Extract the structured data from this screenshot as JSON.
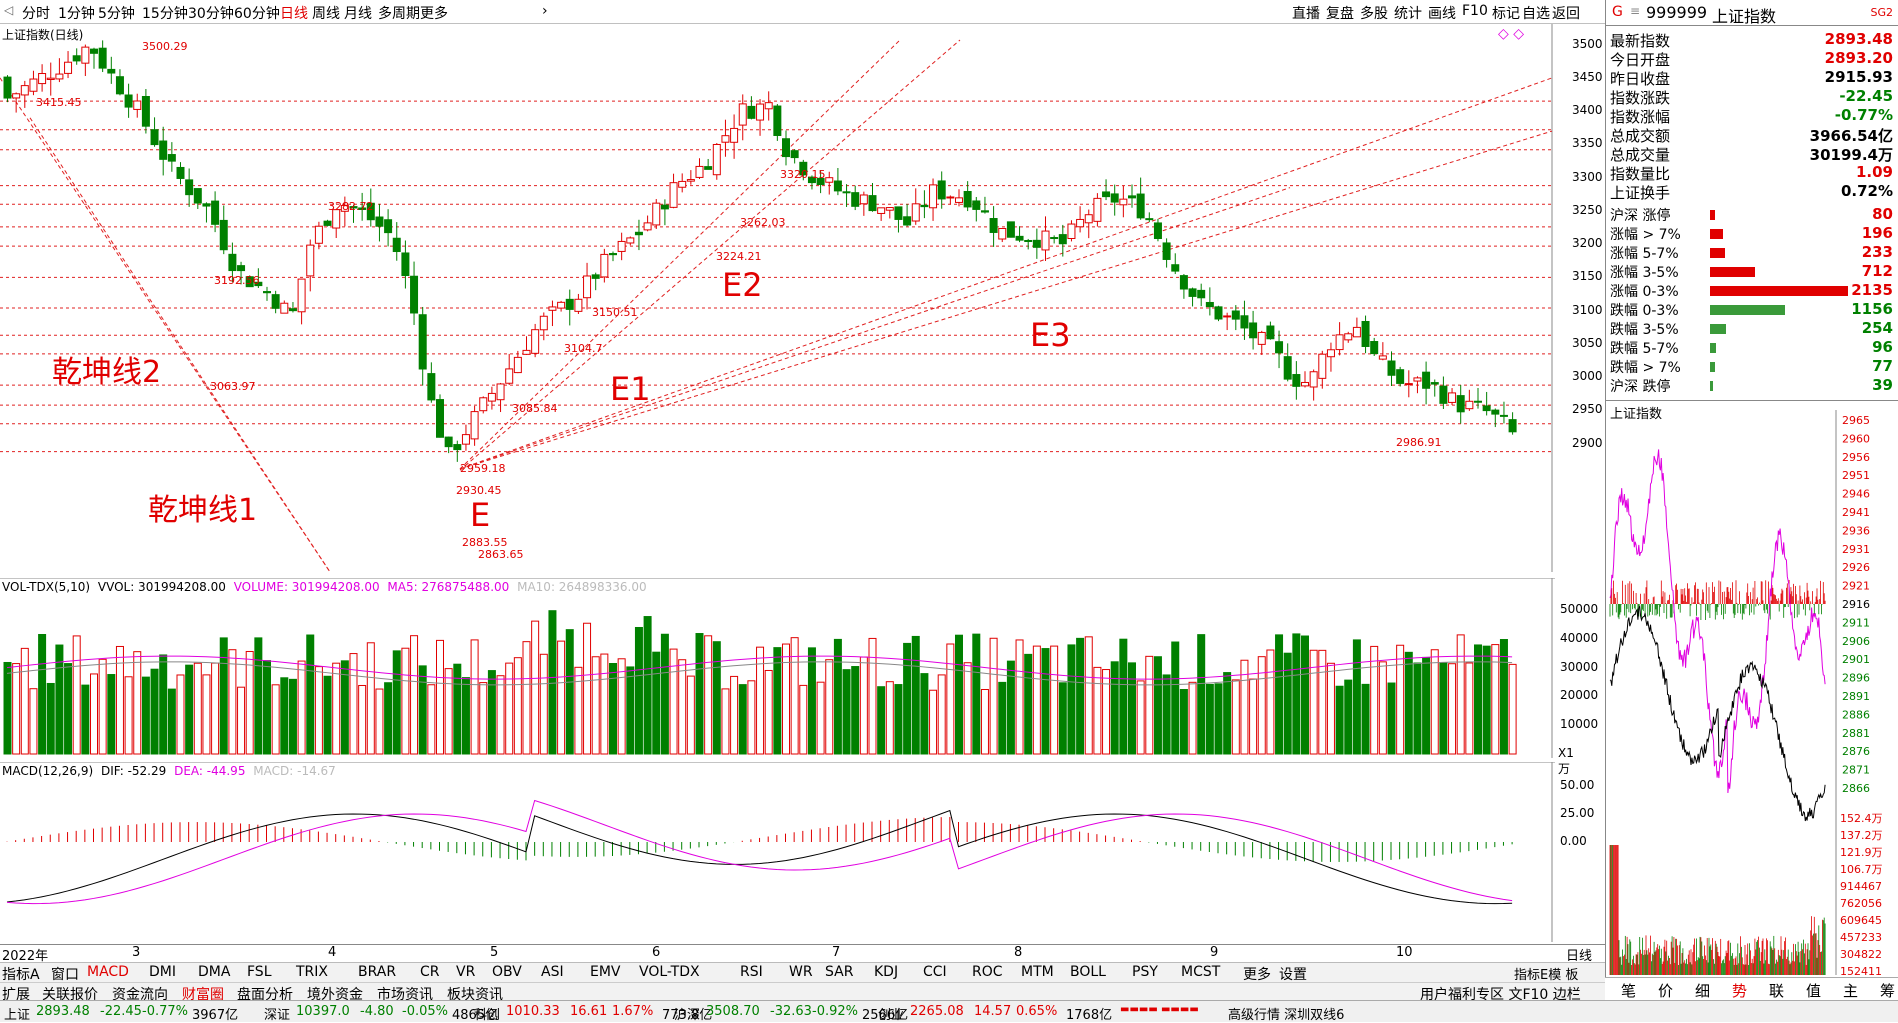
{
  "toolbar": {
    "items": [
      "分时",
      "1分钟",
      "5分钟",
      "15分钟",
      "30分钟",
      "60分钟",
      "日线",
      "周线",
      "月线",
      "多周期",
      "更多"
    ],
    "active": "日线",
    "right_items": [
      "直播",
      "复盘",
      "多股",
      "统计",
      "画线",
      "F10",
      "标记",
      "自选",
      "返回"
    ]
  },
  "main": {
    "title": "上证指数(日线)",
    "y_ticks": [
      "3500",
      "3450",
      "3400",
      "3350",
      "3300",
      "3250",
      "3200",
      "3150",
      "3100",
      "3050",
      "3000",
      "2950",
      "2900"
    ],
    "price_labels": [
      "3500.29",
      "3415.45",
      "3282.72",
      "3192.56",
      "3063.97",
      "3150.51",
      "3104.7",
      "3085.84",
      "3224.21",
      "3262.03",
      "3320.15",
      "2959.18",
      "2930.45",
      "2883.55",
      "2863.65",
      "2986.91"
    ],
    "annotations": [
      "乾坤线2",
      "乾坤线1",
      "E",
      "E1",
      "E2",
      "E3"
    ]
  },
  "volume": {
    "title": "VOL-TDX(5,10)",
    "vvol": "VVOL: 301994208.00",
    "volume": "VOLUME: 301994208.00",
    "ma5": "MA5: 276875488.00",
    "ma10": "MA10: 264898336.00",
    "y_ticks": [
      "50000",
      "40000",
      "30000",
      "20000",
      "10000"
    ],
    "unit": "X1万"
  },
  "macd": {
    "title": "MACD(12,26,9)",
    "dif": "DIF: -52.29",
    "dea": "DEA: -44.95",
    "macd": "MACD: -14.67",
    "y_ticks": [
      "50.00",
      "25.00",
      "0.00"
    ]
  },
  "xaxis": {
    "labels": [
      "2022年",
      "3",
      "4",
      "5",
      "6",
      "7",
      "8",
      "9",
      "10"
    ],
    "right_label": "日线"
  },
  "quote": {
    "code": "999999",
    "name": "上证指数",
    "badge": "SG2",
    "rows": [
      {
        "k": "最新指数",
        "v": "2893.48",
        "c": "up"
      },
      {
        "k": "今日开盘",
        "v": "2893.20",
        "c": "up"
      },
      {
        "k": "昨日收盘",
        "v": "2915.93",
        "c": "n"
      },
      {
        "k": "指数涨跌",
        "v": "-22.45",
        "c": "dn"
      },
      {
        "k": "指数涨幅",
        "v": "-0.77%",
        "c": "dn"
      },
      {
        "k": "总成交额",
        "v": "3966.54亿",
        "c": "n"
      },
      {
        "k": "总成交量",
        "v": "30199.4万",
        "c": "n"
      },
      {
        "k": "指数量比",
        "v": "1.09",
        "c": "up"
      },
      {
        "k": "上证换手",
        "v": "0.72%",
        "c": "n"
      }
    ],
    "breadth": [
      {
        "k": "沪深 涨停",
        "v": "80",
        "c": "up",
        "frac": 0.02
      },
      {
        "k": "涨幅 > 7%",
        "v": "196",
        "c": "up",
        "frac": 0.05
      },
      {
        "k": "涨幅 5-7%",
        "v": "233",
        "c": "up",
        "frac": 0.06
      },
      {
        "k": "涨幅 3-5%",
        "v": "712",
        "c": "up",
        "frac": 0.18
      },
      {
        "k": "涨幅 0-3%",
        "v": "2135",
        "c": "up",
        "frac": 0.55
      },
      {
        "k": "跌幅 0-3%",
        "v": "1156",
        "c": "dn",
        "frac": 0.3
      },
      {
        "k": "跌幅 3-5%",
        "v": "254",
        "c": "dn",
        "frac": 0.065
      },
      {
        "k": "跌幅 5-7%",
        "v": "96",
        "c": "dn",
        "frac": 0.025
      },
      {
        "k": "跌幅 > 7%",
        "v": "77",
        "c": "dn",
        "frac": 0.02
      },
      {
        "k": "沪深 跌停",
        "v": "39",
        "c": "dn",
        "frac": 0.01
      }
    ],
    "intraday_title": "上证指数",
    "intraday_ticks": [
      "2965",
      "2960",
      "2956",
      "2951",
      "2946",
      "2941",
      "2936",
      "2931",
      "2926",
      "2921",
      "2916",
      "2911",
      "2906",
      "2901",
      "2896",
      "2891",
      "2886",
      "2881",
      "2876",
      "2871",
      "2866"
    ],
    "vol_ticks": [
      "152.4万",
      "137.2万",
      "121.9万",
      "106.7万",
      "914467",
      "762056",
      "609645",
      "457233",
      "304822",
      "152411"
    ],
    "tabs": [
      "笔",
      "价",
      "细",
      "势",
      "联",
      "值",
      "主",
      "筹"
    ],
    "active_tab": "势"
  },
  "tabs1": [
    "指标A",
    "窗口",
    "MACD",
    "DMI",
    "DMA",
    "FSL",
    "TRIX",
    "BRAR",
    "CR",
    "VR",
    "OBV",
    "ASI",
    "EMV",
    "VOL-TDX",
    "RSI",
    "WR",
    "SAR",
    "KDJ",
    "CCI",
    "ROC",
    "MTM",
    "BOLL",
    "PSY",
    "MCST",
    "更多",
    "设置"
  ],
  "tabs1_active": "MACD",
  "tabs1_right": "指标E模 板",
  "tabs2": [
    "扩展",
    "关联报价",
    "资金流向",
    "财富圈",
    "盘面分析",
    "境外资金",
    "市场资讯",
    "板块资讯"
  ],
  "tabs2_active": "财富圈",
  "tabs2_right": "用户福利专区 文F10 边栏",
  "status": {
    "items": [
      {
        "name": "上证",
        "v1": "2893.48",
        "v2": "-22.45",
        "v3": "-0.77%",
        "v4": "3967亿"
      },
      {
        "name": "深证",
        "v1": "10397.0",
        "v2": "-4.80",
        "v3": "-0.05%",
        "v4": "4865亿"
      },
      {
        "name": "科创",
        "v1": "1010.33",
        "v2": "16.61",
        "v3": "1.67%",
        "v4": "773.8亿"
      },
      {
        "name": "沪深",
        "v1": "3508.70",
        "v2": "-32.63",
        "v3": "-0.92%",
        "v4": "2566亿"
      },
      {
        "name": "创业",
        "v1": "2265.08",
        "v2": "14.57",
        "v3": "0.65%",
        "v4": "1768亿"
      }
    ],
    "tail": "高级行情 深圳双线6"
  },
  "colors": {
    "up": "#e00000",
    "down": "#008000",
    "dashed": "#e02020",
    "dif": "#000000",
    "dea": "#e000e0"
  }
}
